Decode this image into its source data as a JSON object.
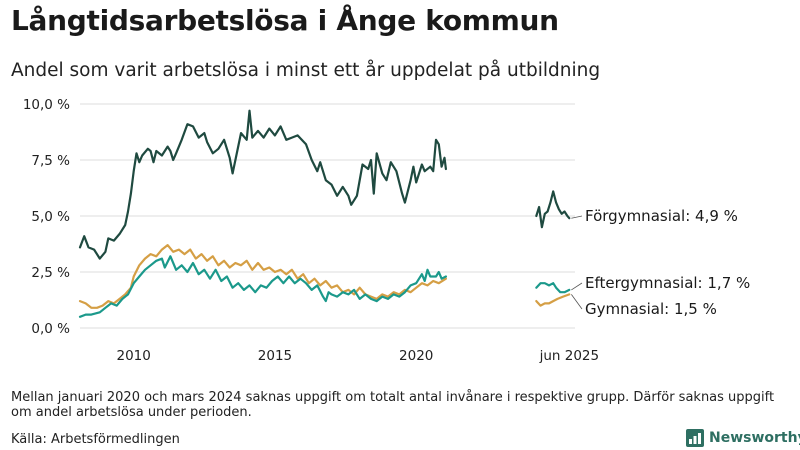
{
  "header": {
    "title": "Långtidsarbetslösa i Ånge kommun",
    "subtitle": "Andel som varit arbetslösa i minst ett år uppdelat på utbildning"
  },
  "footer": {
    "note": "Mellan januari 2020 och mars 2024 saknas uppgift om totalt antal invånare i respektive grupp. Därför saknas uppgift om andel arbetslösa under perioden.",
    "source": "Källa: Arbetsförmedlingen",
    "brand": "Newsworthy"
  },
  "chart_data": {
    "type": "line",
    "title": "Långtidsarbetslösa i Ånge kommun",
    "subtitle": "Andel som varit arbetslösa i minst ett år uppdelat på utbildning",
    "xlabel": "",
    "ylabel": "",
    "ylim": [
      0,
      10
    ],
    "y_ticks": [
      {
        "v": 0,
        "label": "0,0 %"
      },
      {
        "v": 2.5,
        "label": "2,5 %"
      },
      {
        "v": 5,
        "label": "5,0 %"
      },
      {
        "v": 7.5,
        "label": "7,5 %"
      },
      {
        "v": 10,
        "label": "10,0 %"
      }
    ],
    "x_ticks": [
      {
        "v": 2010,
        "label": "2010"
      },
      {
        "v": 2015,
        "label": "2015"
      },
      {
        "v": 2020,
        "label": "2020"
      },
      {
        "v": 2025.42,
        "label": "jun 2025"
      }
    ],
    "xlim": [
      2008.1,
      2025.62
    ],
    "grid": true,
    "series": [
      {
        "name": "Förgymnasial",
        "end_label": "Förgymnasial: 4,9 %",
        "color": "#1f4a40",
        "segments": [
          [
            [
              2008.1,
              3.6
            ],
            [
              2008.25,
              4.1
            ],
            [
              2008.4,
              3.6
            ],
            [
              2008.6,
              3.5
            ],
            [
              2008.8,
              3.1
            ],
            [
              2009.0,
              3.4
            ],
            [
              2009.1,
              4.0
            ],
            [
              2009.3,
              3.9
            ],
            [
              2009.5,
              4.2
            ],
            [
              2009.7,
              4.6
            ],
            [
              2009.8,
              5.2
            ],
            [
              2009.9,
              6.0
            ],
            [
              2010.0,
              7.0
            ],
            [
              2010.1,
              7.8
            ],
            [
              2010.2,
              7.4
            ],
            [
              2010.3,
              7.7
            ],
            [
              2010.5,
              8.0
            ],
            [
              2010.6,
              7.9
            ],
            [
              2010.7,
              7.4
            ],
            [
              2010.8,
              7.9
            ],
            [
              2011.0,
              7.7
            ],
            [
              2011.2,
              8.1
            ],
            [
              2011.3,
              7.9
            ],
            [
              2011.4,
              7.5
            ],
            [
              2011.5,
              7.8
            ],
            [
              2011.7,
              8.4
            ],
            [
              2011.9,
              9.1
            ],
            [
              2012.1,
              9.0
            ],
            [
              2012.3,
              8.5
            ],
            [
              2012.5,
              8.7
            ],
            [
              2012.6,
              8.3
            ],
            [
              2012.8,
              7.8
            ],
            [
              2013.0,
              8.0
            ],
            [
              2013.2,
              8.4
            ],
            [
              2013.3,
              8.0
            ],
            [
              2013.4,
              7.6
            ],
            [
              2013.5,
              6.9
            ],
            [
              2013.6,
              7.5
            ],
            [
              2013.8,
              8.7
            ],
            [
              2014.0,
              8.4
            ],
            [
              2014.1,
              9.7
            ],
            [
              2014.2,
              8.5
            ],
            [
              2014.4,
              8.8
            ],
            [
              2014.6,
              8.5
            ],
            [
              2014.8,
              8.9
            ],
            [
              2015.0,
              8.6
            ],
            [
              2015.2,
              9.0
            ],
            [
              2015.4,
              8.4
            ],
            [
              2015.6,
              8.5
            ],
            [
              2015.8,
              8.6
            ],
            [
              2016.1,
              8.2
            ],
            [
              2016.3,
              7.5
            ],
            [
              2016.5,
              7.0
            ],
            [
              2016.6,
              7.4
            ],
            [
              2016.8,
              6.6
            ],
            [
              2017.0,
              6.4
            ],
            [
              2017.2,
              5.9
            ],
            [
              2017.4,
              6.3
            ],
            [
              2017.6,
              5.9
            ],
            [
              2017.7,
              5.5
            ],
            [
              2017.9,
              5.9
            ],
            [
              2018.1,
              7.3
            ],
            [
              2018.3,
              7.1
            ],
            [
              2018.4,
              7.5
            ],
            [
              2018.5,
              6.0
            ],
            [
              2018.6,
              7.8
            ],
            [
              2018.8,
              6.9
            ],
            [
              2018.95,
              6.6
            ],
            [
              2019.1,
              7.4
            ],
            [
              2019.3,
              7.0
            ],
            [
              2019.5,
              6.0
            ],
            [
              2019.6,
              5.6
            ],
            [
              2019.8,
              6.6
            ],
            [
              2019.9,
              7.2
            ],
            [
              2020.0,
              6.5
            ],
            [
              2020.2,
              7.3
            ],
            [
              2020.3,
              7.0
            ],
            [
              2020.5,
              7.2
            ],
            [
              2020.6,
              7.0
            ],
            [
              2020.7,
              8.4
            ],
            [
              2020.8,
              8.2
            ],
            [
              2020.9,
              7.2
            ],
            [
              2021.0,
              7.6
            ],
            [
              2021.05,
              7.1
            ]
          ],
          [
            [
              2024.25,
              5.0
            ],
            [
              2024.35,
              5.4
            ],
            [
              2024.45,
              4.5
            ],
            [
              2024.55,
              5.1
            ],
            [
              2024.65,
              5.2
            ],
            [
              2024.75,
              5.6
            ],
            [
              2024.85,
              6.1
            ],
            [
              2024.95,
              5.6
            ],
            [
              2025.05,
              5.3
            ],
            [
              2025.15,
              5.1
            ],
            [
              2025.25,
              5.2
            ],
            [
              2025.35,
              5.0
            ],
            [
              2025.42,
              4.9
            ]
          ]
        ]
      },
      {
        "name": "Eftergymnasial",
        "end_label": "Eftergymnasial: 1,7 %",
        "color": "#1b998b",
        "segments": [
          [
            [
              2008.1,
              0.5
            ],
            [
              2008.3,
              0.6
            ],
            [
              2008.5,
              0.6
            ],
            [
              2008.8,
              0.7
            ],
            [
              2009.0,
              0.9
            ],
            [
              2009.2,
              1.1
            ],
            [
              2009.4,
              1.0
            ],
            [
              2009.6,
              1.3
            ],
            [
              2009.8,
              1.5
            ],
            [
              2010.0,
              2.0
            ],
            [
              2010.2,
              2.3
            ],
            [
              2010.4,
              2.6
            ],
            [
              2010.6,
              2.8
            ],
            [
              2010.8,
              3.0
            ],
            [
              2011.0,
              3.1
            ],
            [
              2011.1,
              2.7
            ],
            [
              2011.3,
              3.2
            ],
            [
              2011.5,
              2.6
            ],
            [
              2011.7,
              2.8
            ],
            [
              2011.9,
              2.5
            ],
            [
              2012.1,
              2.9
            ],
            [
              2012.3,
              2.4
            ],
            [
              2012.5,
              2.6
            ],
            [
              2012.7,
              2.2
            ],
            [
              2012.9,
              2.6
            ],
            [
              2013.1,
              2.1
            ],
            [
              2013.3,
              2.3
            ],
            [
              2013.5,
              1.8
            ],
            [
              2013.7,
              2.0
            ],
            [
              2013.9,
              1.7
            ],
            [
              2014.1,
              1.9
            ],
            [
              2014.3,
              1.6
            ],
            [
              2014.5,
              1.9
            ],
            [
              2014.7,
              1.8
            ],
            [
              2014.9,
              2.1
            ],
            [
              2015.1,
              2.3
            ],
            [
              2015.3,
              2.0
            ],
            [
              2015.5,
              2.3
            ],
            [
              2015.7,
              2.0
            ],
            [
              2015.9,
              2.2
            ],
            [
              2016.1,
              2.0
            ],
            [
              2016.3,
              1.7
            ],
            [
              2016.5,
              1.9
            ],
            [
              2016.7,
              1.4
            ],
            [
              2016.8,
              1.2
            ],
            [
              2016.9,
              1.6
            ],
            [
              2017.0,
              1.5
            ],
            [
              2017.2,
              1.4
            ],
            [
              2017.4,
              1.6
            ],
            [
              2017.6,
              1.5
            ],
            [
              2017.8,
              1.7
            ],
            [
              2018.0,
              1.3
            ],
            [
              2018.2,
              1.5
            ],
            [
              2018.4,
              1.3
            ],
            [
              2018.6,
              1.2
            ],
            [
              2018.8,
              1.4
            ],
            [
              2019.0,
              1.3
            ],
            [
              2019.2,
              1.5
            ],
            [
              2019.4,
              1.4
            ],
            [
              2019.6,
              1.6
            ],
            [
              2019.8,
              1.9
            ],
            [
              2020.0,
              2.0
            ],
            [
              2020.2,
              2.4
            ],
            [
              2020.3,
              2.1
            ],
            [
              2020.4,
              2.6
            ],
            [
              2020.5,
              2.3
            ],
            [
              2020.7,
              2.3
            ],
            [
              2020.8,
              2.5
            ],
            [
              2020.9,
              2.2
            ],
            [
              2021.05,
              2.3
            ]
          ],
          [
            [
              2024.25,
              1.8
            ],
            [
              2024.4,
              2.0
            ],
            [
              2024.55,
              2.0
            ],
            [
              2024.7,
              1.9
            ],
            [
              2024.85,
              2.0
            ],
            [
              2024.95,
              1.8
            ],
            [
              2025.1,
              1.6
            ],
            [
              2025.25,
              1.6
            ],
            [
              2025.42,
              1.7
            ]
          ]
        ]
      },
      {
        "name": "Gymnasial",
        "end_label": "Gymnasial: 1,5 %",
        "color": "#d59f45",
        "segments": [
          [
            [
              2008.1,
              1.2
            ],
            [
              2008.3,
              1.1
            ],
            [
              2008.5,
              0.9
            ],
            [
              2008.7,
              0.9
            ],
            [
              2008.9,
              1.0
            ],
            [
              2009.1,
              1.2
            ],
            [
              2009.3,
              1.1
            ],
            [
              2009.5,
              1.3
            ],
            [
              2009.7,
              1.5
            ],
            [
              2009.9,
              1.8
            ],
            [
              2010.0,
              2.3
            ],
            [
              2010.2,
              2.8
            ],
            [
              2010.4,
              3.1
            ],
            [
              2010.6,
              3.3
            ],
            [
              2010.8,
              3.2
            ],
            [
              2011.0,
              3.5
            ],
            [
              2011.2,
              3.7
            ],
            [
              2011.4,
              3.4
            ],
            [
              2011.6,
              3.5
            ],
            [
              2011.8,
              3.3
            ],
            [
              2012.0,
              3.5
            ],
            [
              2012.2,
              3.1
            ],
            [
              2012.4,
              3.3
            ],
            [
              2012.6,
              3.0
            ],
            [
              2012.8,
              3.2
            ],
            [
              2013.0,
              2.8
            ],
            [
              2013.2,
              3.0
            ],
            [
              2013.4,
              2.7
            ],
            [
              2013.6,
              2.9
            ],
            [
              2013.8,
              2.8
            ],
            [
              2014.0,
              3.0
            ],
            [
              2014.2,
              2.6
            ],
            [
              2014.4,
              2.9
            ],
            [
              2014.6,
              2.6
            ],
            [
              2014.8,
              2.7
            ],
            [
              2015.0,
              2.5
            ],
            [
              2015.2,
              2.6
            ],
            [
              2015.4,
              2.4
            ],
            [
              2015.6,
              2.6
            ],
            [
              2015.8,
              2.2
            ],
            [
              2016.0,
              2.4
            ],
            [
              2016.2,
              2.0
            ],
            [
              2016.4,
              2.2
            ],
            [
              2016.6,
              1.9
            ],
            [
              2016.8,
              2.1
            ],
            [
              2017.0,
              1.8
            ],
            [
              2017.2,
              1.9
            ],
            [
              2017.4,
              1.6
            ],
            [
              2017.6,
              1.7
            ],
            [
              2017.8,
              1.5
            ],
            [
              2018.0,
              1.8
            ],
            [
              2018.2,
              1.5
            ],
            [
              2018.4,
              1.4
            ],
            [
              2018.6,
              1.3
            ],
            [
              2018.8,
              1.5
            ],
            [
              2019.0,
              1.4
            ],
            [
              2019.2,
              1.6
            ],
            [
              2019.4,
              1.5
            ],
            [
              2019.6,
              1.7
            ],
            [
              2019.8,
              1.6
            ],
            [
              2020.0,
              1.8
            ],
            [
              2020.2,
              2.0
            ],
            [
              2020.4,
              1.9
            ],
            [
              2020.6,
              2.1
            ],
            [
              2020.8,
              2.0
            ],
            [
              2021.05,
              2.2
            ]
          ],
          [
            [
              2024.25,
              1.2
            ],
            [
              2024.4,
              1.0
            ],
            [
              2024.55,
              1.1
            ],
            [
              2024.7,
              1.1
            ],
            [
              2024.85,
              1.2
            ],
            [
              2025.0,
              1.3
            ],
            [
              2025.2,
              1.4
            ],
            [
              2025.42,
              1.5
            ]
          ]
        ]
      }
    ]
  }
}
